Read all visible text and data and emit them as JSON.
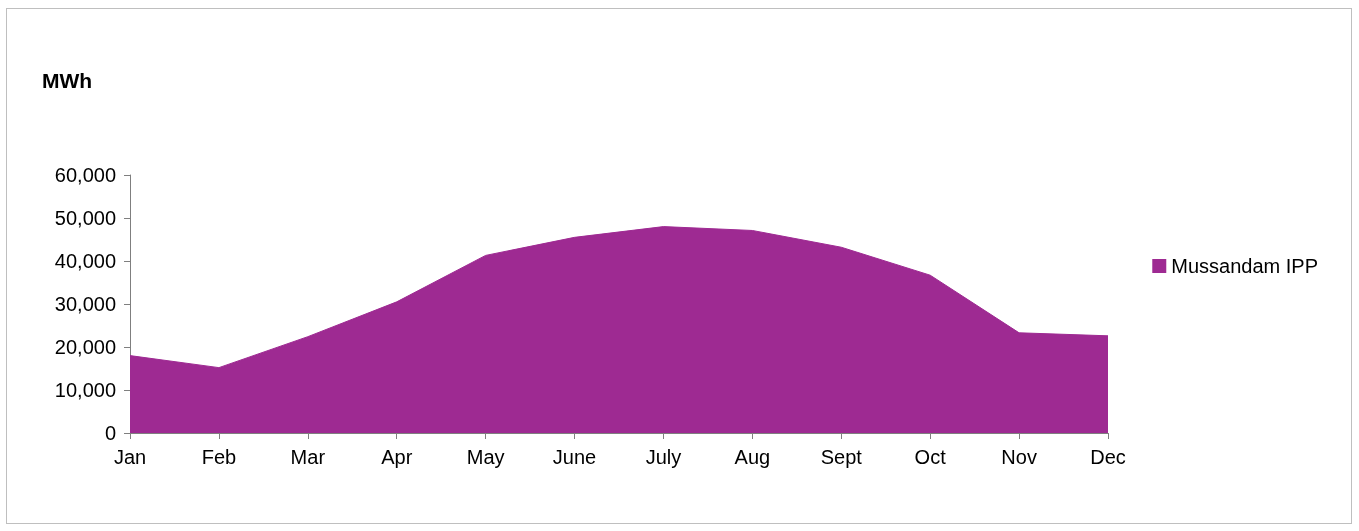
{
  "chart_data": {
    "type": "area",
    "ylabel": "MWh",
    "categories": [
      "Jan",
      "Feb",
      "Mar",
      "Apr",
      "May",
      "June",
      "July",
      "Aug",
      "Sept",
      "Oct",
      "Nov",
      "Dec"
    ],
    "series": [
      {
        "name": "Mussandam IPP",
        "color": "#9e2a92",
        "values": [
          18000,
          15200,
          22400,
          30500,
          41300,
          45500,
          48000,
          47100,
          43200,
          36700,
          23300,
          22600
        ]
      }
    ],
    "ylim": [
      0,
      60000
    ],
    "yticks": [
      {
        "value": 0,
        "label": "0"
      },
      {
        "value": 10000,
        "label": "10,000"
      },
      {
        "value": 20000,
        "label": "20,000"
      },
      {
        "value": 30000,
        "label": "30,000"
      },
      {
        "value": 40000,
        "label": "40,000"
      },
      {
        "value": 50000,
        "label": "50,000"
      },
      {
        "value": 60000,
        "label": "60,000"
      }
    ],
    "grid": false,
    "legend": "right"
  }
}
